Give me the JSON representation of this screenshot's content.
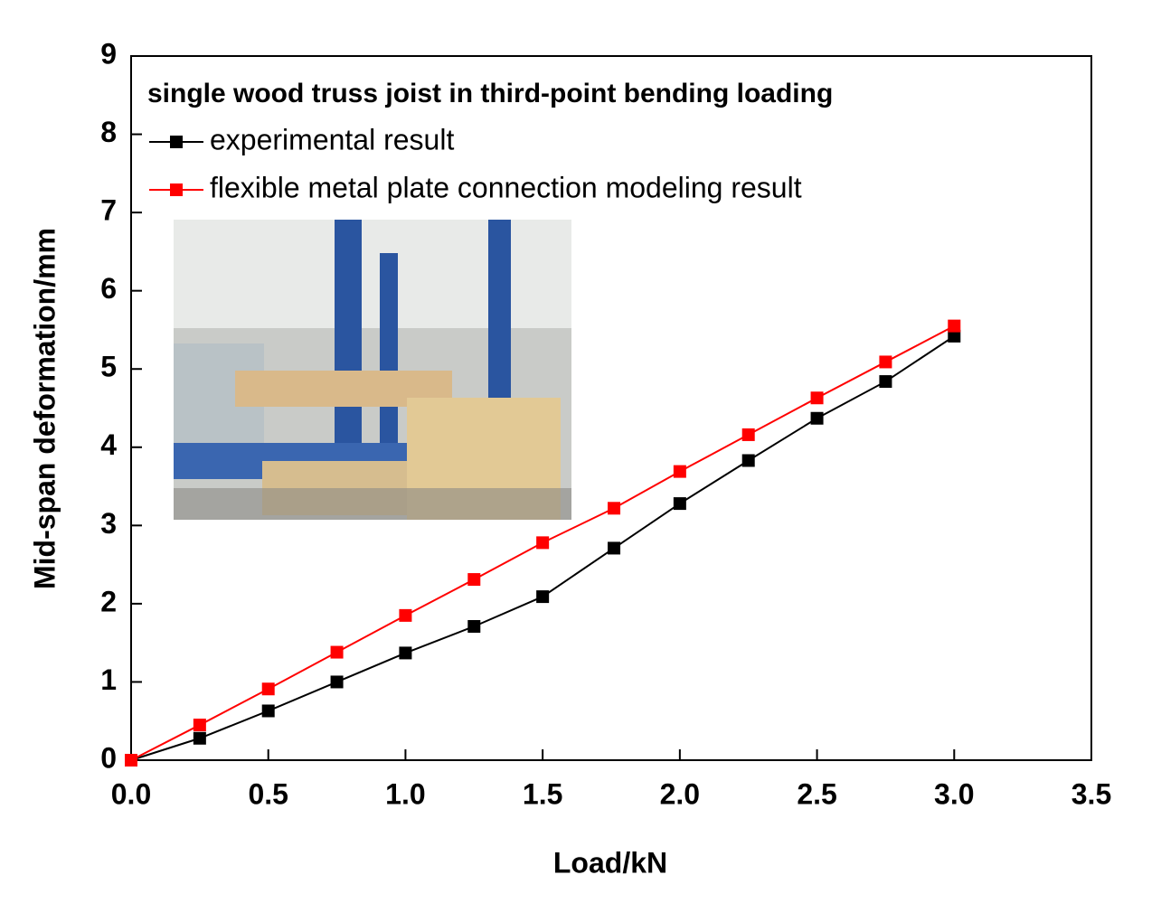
{
  "chart_data": {
    "type": "line",
    "title": "single wood truss joist in third-point bending loading",
    "x_label": "Load/kN",
    "y_label": "Mid-span deformation/mm",
    "x": [
      0,
      0.25,
      0.5,
      0.75,
      1.0,
      1.25,
      1.5,
      1.76,
      2.0,
      2.25,
      2.5,
      2.75,
      3.0
    ],
    "series": [
      {
        "name": "experimental result",
        "color": "#000000",
        "values": [
          0,
          0.28,
          0.63,
          1.0,
          1.37,
          1.71,
          2.09,
          2.71,
          3.28,
          3.83,
          4.37,
          4.84,
          5.42
        ]
      },
      {
        "name": "flexible metal plate connection modeling result",
        "color": "#ff0000",
        "values": [
          0,
          0.45,
          0.91,
          1.38,
          1.85,
          2.31,
          2.78,
          3.22,
          3.69,
          4.16,
          4.63,
          5.09,
          5.55
        ]
      }
    ],
    "xlim": [
      0,
      3.5
    ],
    "xticks": [
      {
        "value": 0,
        "label": "0.0"
      },
      0.5,
      {
        "value": 1,
        "label": "1.0"
      },
      1.5,
      {
        "value": 2,
        "label": "2.0"
      },
      2.5,
      {
        "value": 3,
        "label": "3.0"
      },
      3.5
    ],
    "ylim": [
      0,
      9
    ],
    "yticks": [
      0,
      1,
      2,
      3,
      4,
      5,
      6,
      7,
      8,
      9
    ],
    "grid": false
  }
}
